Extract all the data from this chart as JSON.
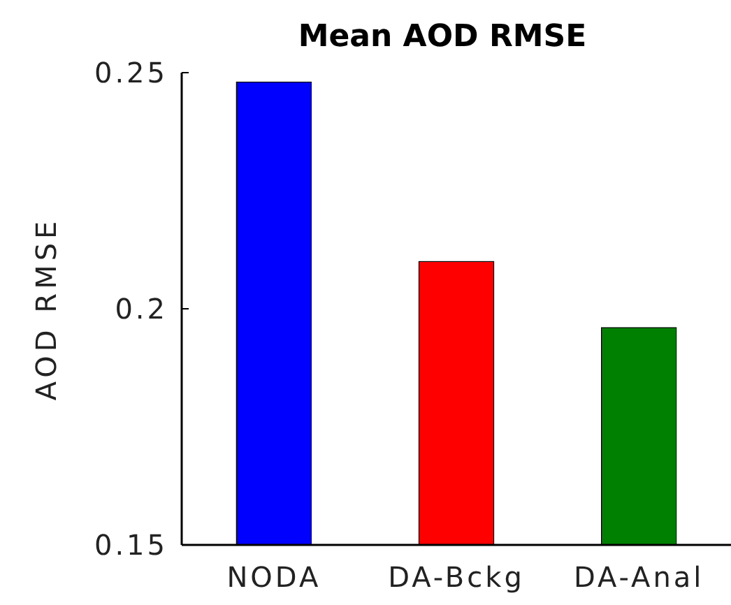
{
  "chart_data": {
    "type": "bar",
    "title": "Mean AOD RMSE",
    "ylabel": "AOD RMSE",
    "categories": [
      "NODA",
      "DA-Bckg",
      "DA-Anal"
    ],
    "values": [
      0.248,
      0.21,
      0.196
    ],
    "colors": [
      "#0000ff",
      "#ff0000",
      "#008000"
    ],
    "ylim": [
      0.15,
      0.25
    ],
    "yticks": [
      {
        "value": 0.15,
        "label": "0.15"
      },
      {
        "value": 0.2,
        "label": "0.2"
      },
      {
        "value": 0.25,
        "label": "0.25"
      }
    ],
    "grid": false
  }
}
